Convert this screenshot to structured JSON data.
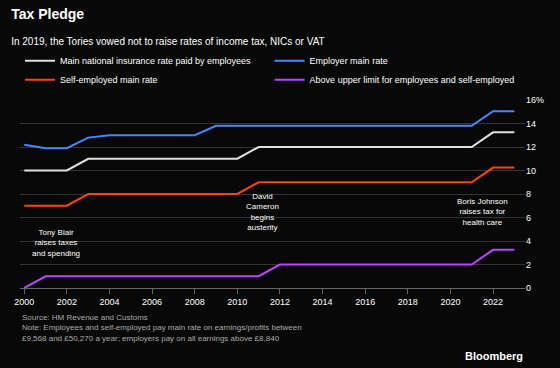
{
  "chart_data": {
    "type": "line",
    "title": "Tax Pledge",
    "subtitle": "In 2019, the Tories vowed not to raise rates of income tax, NICs or VAT",
    "x": [
      2000,
      2001,
      2002,
      2003,
      2004,
      2005,
      2006,
      2007,
      2008,
      2009,
      2010,
      2011,
      2012,
      2013,
      2014,
      2015,
      2016,
      2017,
      2018,
      2019,
      2020,
      2021,
      2022,
      2023
    ],
    "series": [
      {
        "name": "Main national insurance rate paid by employees",
        "color": "#e0e0e0",
        "values": [
          10,
          10,
          10,
          11,
          11,
          11,
          11,
          11,
          11,
          11,
          11,
          12,
          12,
          12,
          12,
          12,
          12,
          12,
          12,
          12,
          12,
          12,
          13.25,
          13.25
        ]
      },
      {
        "name": "Employer main rate",
        "color": "#4488ff",
        "values": [
          12.2,
          11.9,
          11.9,
          12.8,
          13.0,
          13.0,
          13.0,
          13.0,
          13.0,
          13.8,
          13.8,
          13.8,
          13.8,
          13.8,
          13.8,
          13.8,
          13.8,
          13.8,
          13.8,
          13.8,
          13.8,
          13.8,
          15.05,
          15.05
        ]
      },
      {
        "name": "Self-employed main rate",
        "color": "#ff4400",
        "values": [
          7,
          7,
          7,
          8,
          8,
          8,
          8,
          8,
          8,
          8,
          8,
          9,
          9,
          9,
          9,
          9,
          9,
          9,
          9,
          9,
          9,
          9,
          10.25,
          10.25
        ]
      },
      {
        "name": "Above upper limit for employees and self-employed",
        "color": "#bb44ff",
        "values": [
          0,
          1,
          1,
          1,
          1,
          1,
          1,
          1,
          1,
          1,
          1,
          1,
          2,
          2,
          2,
          2,
          2,
          2,
          2,
          2,
          2,
          2,
          3.25,
          3.25
        ]
      }
    ],
    "annotations": [
      {
        "text": "Tony Blair\nraises taxes\nand spending",
        "x": 2001.5,
        "y": 3.8
      },
      {
        "text": "David\nCameron\nbegins\nausterity",
        "x": 2011.2,
        "y": 6.5
      },
      {
        "text": "Boris Johnson\nraises tax for\nhealth care",
        "x": 2021.5,
        "y": 6.5
      }
    ],
    "source": "Source: HM Revenue and Customs\nNote: Employees and self-employed pay main rate on earnings/profits between\n£9,568 and £50,270 a year; employers pay on all earnings above £8,840",
    "credit": "Bloomberg",
    "xlim": [
      1999.8,
      2023.5
    ],
    "xticks": [
      2000,
      2002,
      2004,
      2006,
      2008,
      2010,
      2012,
      2014,
      2016,
      2018,
      2020,
      2022
    ],
    "ylim": [
      0,
      16
    ],
    "yticks": [
      0,
      2,
      4,
      6,
      8,
      10,
      12,
      14,
      {
        "value": 16,
        "label": "16%"
      }
    ],
    "grid": true
  }
}
